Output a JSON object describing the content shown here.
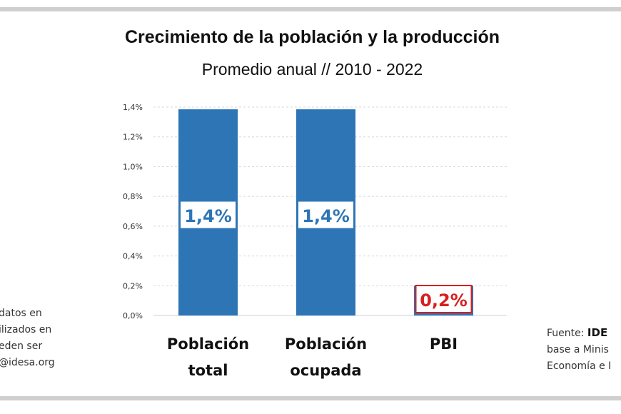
{
  "chart_data": {
    "type": "bar",
    "title": "Crecimiento de la población y la producción",
    "subtitle": "Promedio anual // 2010 - 2022",
    "categories": [
      [
        "Población",
        "total"
      ],
      [
        "Población",
        "ocupada"
      ],
      [
        "PBI"
      ]
    ],
    "values": [
      1.4,
      1.4,
      0.2
    ],
    "data_labels": [
      "1,4%",
      "1,4%",
      "0,2%"
    ],
    "ylim": [
      0,
      1.4
    ],
    "yticks": [
      "0,0%",
      "0,2%",
      "0,4%",
      "0,6%",
      "0,8%",
      "1,0%",
      "1,2%",
      "1,4%"
    ],
    "grid": true,
    "bar_color": "#2e75b6",
    "label_colors": [
      "#2e75b6",
      "#2e75b6",
      "#d62020"
    ]
  },
  "notes": {
    "left": [
      "datos en",
      "ilizados en",
      "eden ser",
      "@idesa.org"
    ],
    "right_prefix": "Fuente: ",
    "right_brand": "IDE",
    "right_lines": [
      "base a Minis",
      "Economía e I"
    ]
  }
}
